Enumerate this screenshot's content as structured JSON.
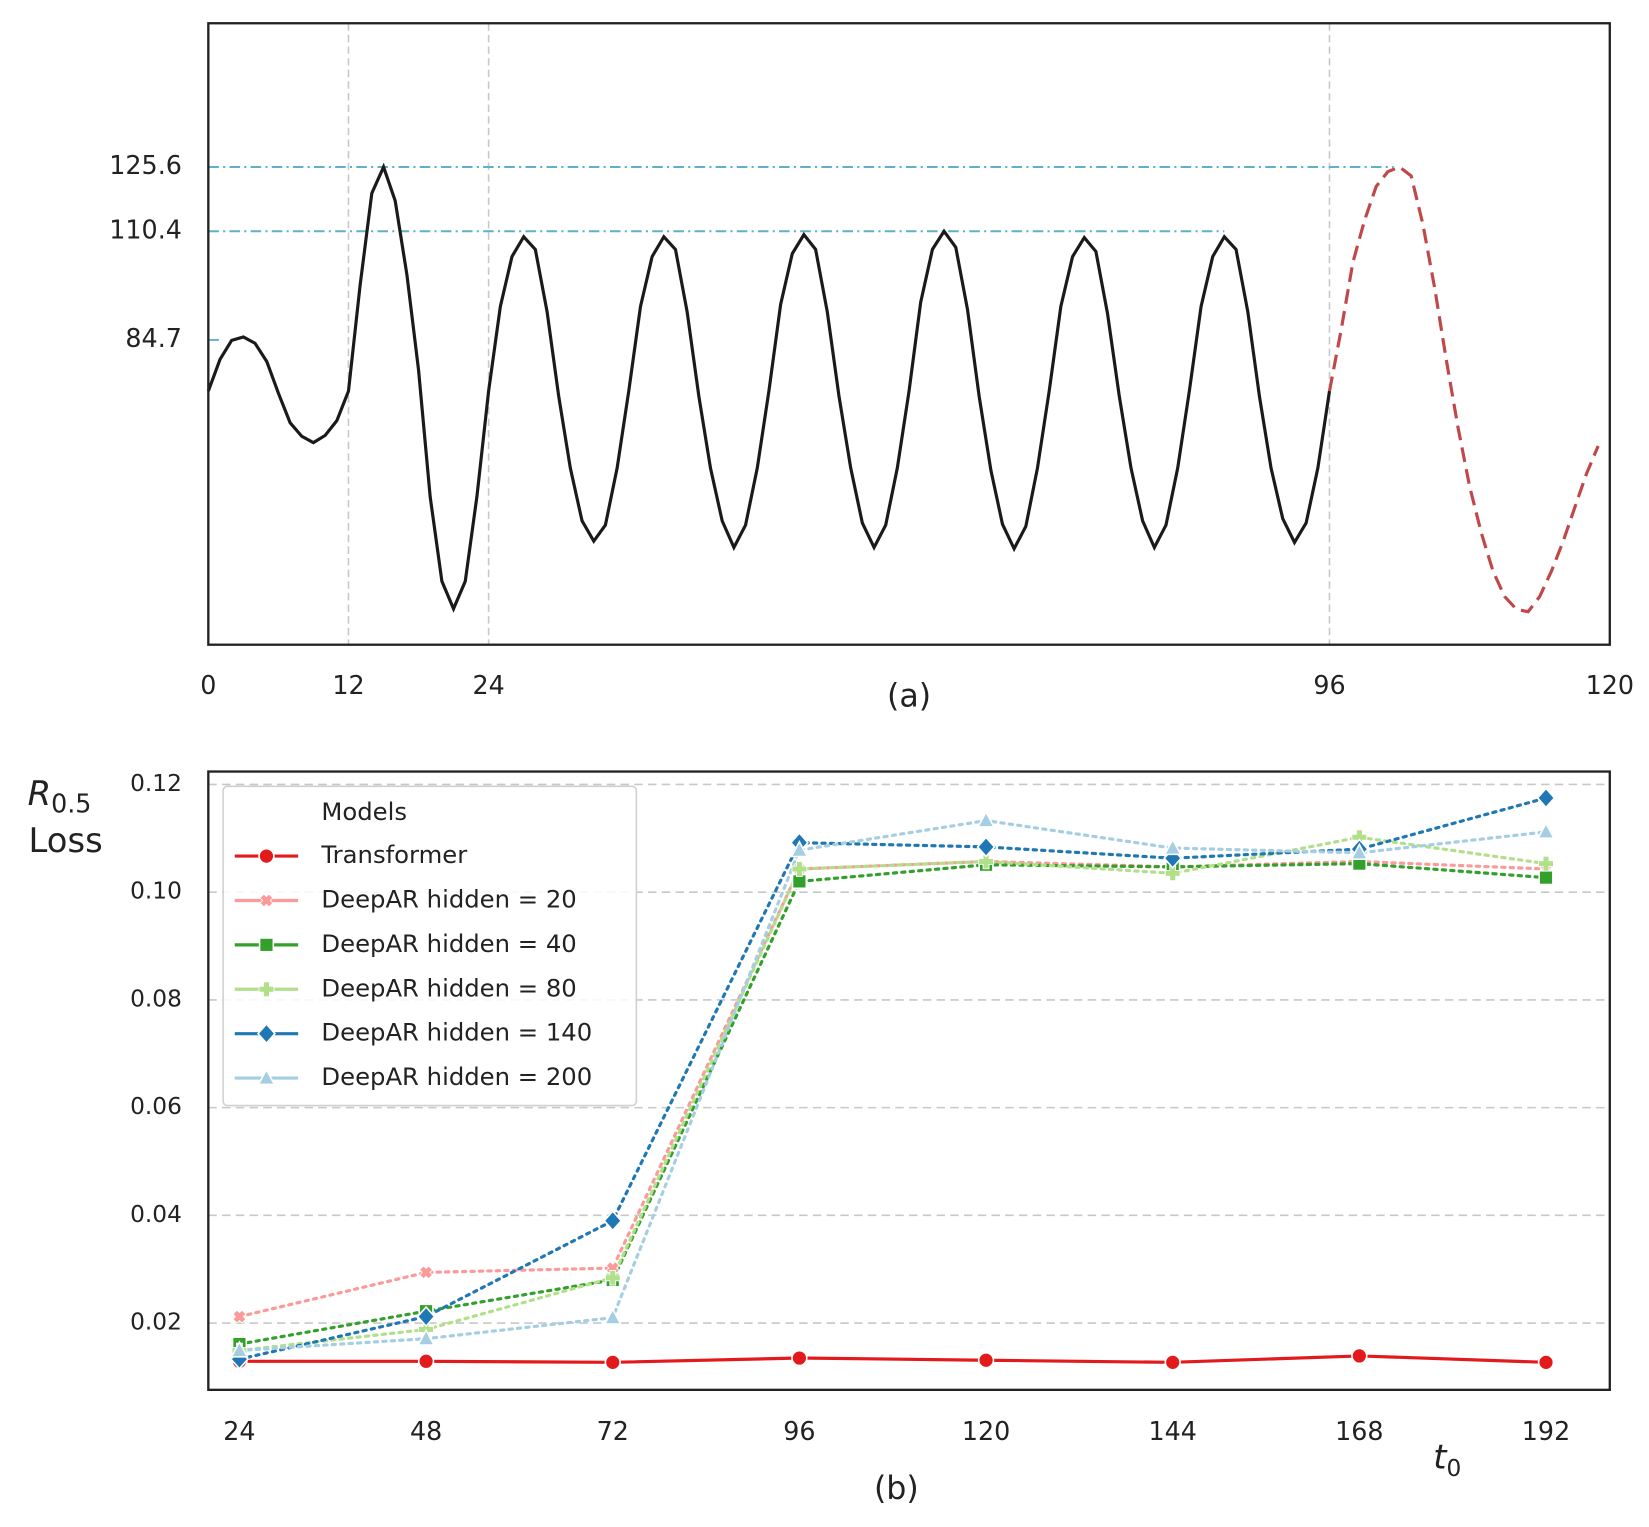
{
  "chart_data": [
    {
      "type": "line",
      "label": "(a)",
      "xlim": [
        0,
        120
      ],
      "ylim": [
        12.6,
        159.6
      ],
      "xticks": [
        0,
        12,
        24,
        96,
        120
      ],
      "yticks": [
        84.7,
        110.4,
        125.6
      ],
      "vlines": [
        12,
        24,
        96
      ],
      "hlines": [
        {
          "y": 125.6,
          "x_end": 101.5
        },
        {
          "y": 110.4,
          "x_end": 87
        },
        {
          "y": 84.7,
          "x_end": 1.2
        }
      ],
      "hline_color": "#5fb0c8",
      "series": [
        {
          "color": "#1a1a1a",
          "dash": "solid",
          "x": [
            0,
            1,
            2,
            3,
            4,
            5,
            6,
            7,
            8,
            9,
            10,
            11,
            12,
            13,
            14,
            15,
            16,
            17,
            18,
            19,
            20,
            21,
            22,
            23,
            24,
            25,
            26,
            27,
            28,
            29,
            30,
            31,
            32,
            33,
            34,
            35,
            36,
            37,
            38,
            39,
            40,
            41,
            42,
            43,
            44,
            45,
            46,
            47,
            48,
            49,
            50,
            51,
            52,
            53,
            54,
            55,
            56,
            57,
            58,
            59,
            60,
            61,
            62,
            63,
            64,
            65,
            66,
            67,
            68,
            69,
            70,
            71,
            72,
            73,
            74,
            75,
            76,
            77,
            78,
            79,
            80,
            81,
            82,
            83,
            84,
            85,
            86,
            87,
            88,
            89,
            90,
            91,
            92,
            93,
            94,
            95,
            96
          ],
          "values": [
            72.6,
            80.1,
            84.6,
            85.4,
            83.9,
            79.6,
            72.1,
            65.1,
            61.9,
            60.4,
            62.1,
            65.6,
            72.6,
            97.6,
            119.4,
            125.6,
            117.6,
            100.1,
            77.6,
            47.6,
            27.6,
            21.1,
            27.6,
            47.6,
            72.6,
            92.6,
            104.4,
            109.1,
            106.1,
            91.4,
            71.4,
            54.4,
            41.9,
            37.1,
            40.9,
            54.4,
            72.6,
            92.6,
            104.4,
            109.1,
            106.1,
            91.4,
            71.4,
            54.4,
            41.9,
            35.6,
            40.9,
            54.4,
            72.6,
            93.1,
            105.1,
            109.6,
            106.1,
            91.4,
            71.4,
            54.4,
            41.4,
            35.6,
            40.9,
            54.4,
            72.6,
            93.6,
            106.1,
            110.4,
            106.6,
            91.9,
            71.4,
            53.9,
            41.1,
            35.3,
            40.6,
            54.4,
            72.6,
            92.6,
            104.4,
            108.9,
            105.6,
            90.9,
            71.4,
            54.4,
            41.9,
            35.6,
            40.9,
            54.4,
            72.6,
            92.6,
            104.4,
            109.1,
            106.1,
            91.4,
            71.4,
            54.4,
            42.4,
            36.8,
            41.4,
            54.4,
            72.6
          ]
        },
        {
          "color": "#c0474a",
          "dash": "dashed",
          "x": [
            96,
            97,
            98,
            99,
            100,
            101,
            102,
            103,
            104,
            105,
            106,
            107,
            108,
            109,
            110,
            111,
            112,
            113,
            114,
            115,
            116,
            117,
            118,
            119
          ],
          "values": [
            72.6,
            87,
            103,
            113,
            121,
            124.5,
            125.6,
            123.5,
            112,
            97,
            80,
            64,
            50,
            39,
            30,
            24,
            21,
            20.4,
            24,
            30,
            37,
            45,
            53,
            59.6
          ]
        }
      ]
    },
    {
      "type": "line",
      "label": "(b)",
      "x_label": {
        "symbol": "t",
        "subscript": "0"
      },
      "y_label": {
        "symbol": "R",
        "subscript": "0.5",
        "text": "Loss"
      },
      "legend_title": "Models",
      "legend": "upper left",
      "grid": true,
      "x": [
        24,
        48,
        72,
        96,
        120,
        144,
        168,
        192
      ],
      "xlim": [
        20,
        200.2
      ],
      "ylim": [
        0.0076,
        0.1224
      ],
      "xticks": [
        24,
        48,
        72,
        96,
        120,
        144,
        168,
        192
      ],
      "yticks": [
        0.02,
        0.04,
        0.06,
        0.08,
        {
          "value": 0.1,
          "label": "0.10"
        },
        0.12
      ],
      "series": [
        {
          "name": "Transformer",
          "color": "#e31a1c",
          "marker": "circle",
          "dash": "solid",
          "values": [
            0.0129,
            0.0129,
            0.0127,
            0.0135,
            0.0131,
            0.0127,
            0.0139,
            0.0127
          ]
        },
        {
          "name": "DeepAR hidden = 20",
          "color": "#fb9a99",
          "marker": "x",
          "dash": "dotted",
          "values": [
            0.0212,
            0.0294,
            0.0302,
            0.1043,
            0.1057,
            0.1047,
            0.1057,
            0.1043
          ]
        },
        {
          "name": "DeepAR hidden = 40",
          "color": "#33a02c",
          "marker": "square",
          "dash": "dotted",
          "values": [
            0.0161,
            0.0222,
            0.028,
            0.102,
            0.1051,
            0.1047,
            0.1053,
            0.1027
          ]
        },
        {
          "name": "DeepAR hidden = 80",
          "color": "#b2df8a",
          "marker": "plus",
          "dash": "dotted",
          "values": [
            0.0149,
            0.0188,
            0.0284,
            0.1043,
            0.1057,
            0.1035,
            0.1102,
            0.1053
          ]
        },
        {
          "name": "DeepAR hidden = 140",
          "color": "#1f78b4",
          "marker": "diamond",
          "dash": "dotted",
          "values": [
            0.0133,
            0.0212,
            0.039,
            0.1092,
            0.1084,
            0.1063,
            0.108,
            0.1175
          ]
        },
        {
          "name": "DeepAR hidden = 200",
          "color": "#a6cee3",
          "marker": "triangle",
          "dash": "dotted",
          "values": [
            0.0149,
            0.0171,
            0.021,
            0.1078,
            0.1133,
            0.1082,
            0.1073,
            0.1112
          ]
        }
      ]
    }
  ]
}
